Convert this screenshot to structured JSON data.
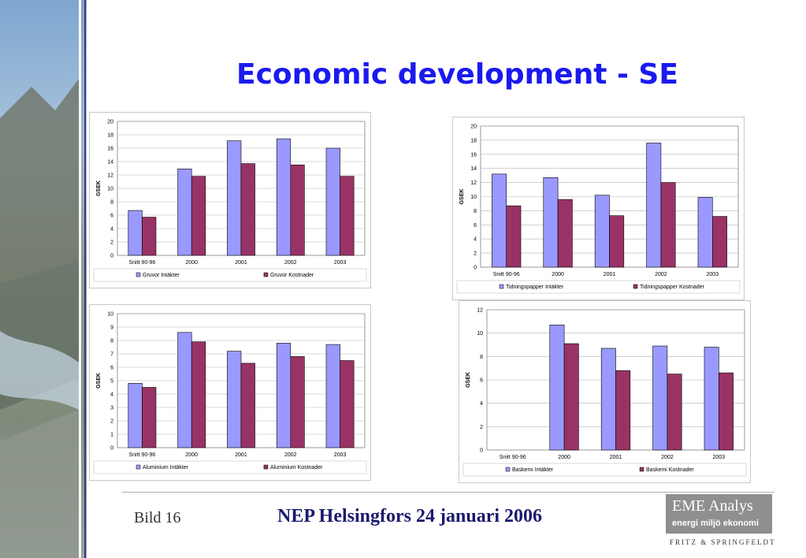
{
  "slide": {
    "title": "Economic development - SE",
    "footer": {
      "bild": "Bild 16",
      "event": "NEP Helsingfors 24 januari 2006",
      "logo_line1": "EME Analys",
      "logo_line2": "energi miljö ekonomi",
      "logo_sub": "FRITZ & SPRINGFELDT"
    }
  },
  "colors": {
    "intakter": "#9999ff",
    "kostnader": "#993366",
    "title": "#1a1aef"
  },
  "chart_data": [
    {
      "type": "bar",
      "categories": [
        "Snitt 90-96",
        "2000",
        "2001",
        "2002",
        "2003"
      ],
      "ylabel": "GSEK",
      "ylim": [
        0,
        20
      ],
      "ystep": 2,
      "grid": true,
      "legend": "bottom",
      "series": [
        {
          "name": "Gruvor Intäkter",
          "values": [
            6.7,
            12.9,
            17.1,
            17.4,
            16.0
          ]
        },
        {
          "name": "Gruvor Kostnader",
          "values": [
            5.7,
            11.8,
            13.7,
            13.5,
            11.8
          ]
        }
      ]
    },
    {
      "type": "bar",
      "categories": [
        "Snitt 90-96",
        "2000",
        "2001",
        "2002",
        "2003"
      ],
      "ylabel": "GSEK",
      "ylim": [
        0,
        20
      ],
      "ystep": 2,
      "grid": true,
      "legend": "bottom",
      "series": [
        {
          "name": "Tidningspapper Intäkter",
          "values": [
            13.2,
            12.7,
            10.2,
            17.6,
            9.9
          ]
        },
        {
          "name": "Tidningspapper Kostnader",
          "values": [
            8.7,
            9.6,
            7.3,
            12.0,
            7.2
          ]
        }
      ]
    },
    {
      "type": "bar",
      "categories": [
        "Snitt 90-96",
        "2000",
        "2001",
        "2002",
        "2003"
      ],
      "ylabel": "GSEK",
      "ylim": [
        0,
        10
      ],
      "ystep": 1,
      "grid": true,
      "legend": "bottom",
      "series": [
        {
          "name": "Aluminium Intäkter",
          "values": [
            4.8,
            8.6,
            7.2,
            7.8,
            7.7
          ]
        },
        {
          "name": "Aluminium Kostnader",
          "values": [
            4.5,
            7.9,
            6.3,
            6.8,
            6.5
          ]
        }
      ]
    },
    {
      "type": "bar",
      "categories": [
        "Snitt 90-96",
        "2000",
        "2001",
        "2002",
        "2003"
      ],
      "ylabel": "GSEK",
      "ylim": [
        0,
        12
      ],
      "ystep": 2,
      "grid": true,
      "legend": "bottom",
      "series": [
        {
          "name": "Baskemi Intäkter",
          "values": [
            0,
            10.7,
            8.7,
            8.9,
            8.8
          ]
        },
        {
          "name": "Baskemi Kostnader",
          "values": [
            0,
            9.1,
            6.8,
            6.5,
            6.6
          ]
        }
      ]
    }
  ]
}
